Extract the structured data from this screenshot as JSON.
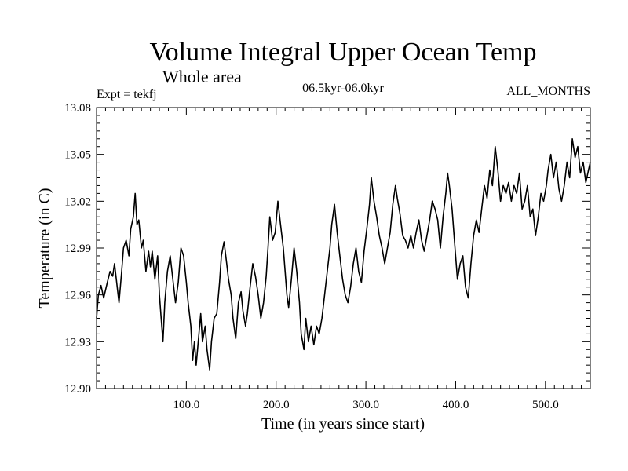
{
  "header": {
    "title": "Volume Integral Upper Ocean Temp",
    "subtitle": "Whole area",
    "expt": "Expt = tekfj",
    "period": "06.5kyr-06.0kyr",
    "months": "ALL_MONTHS"
  },
  "chart_data": {
    "type": "line",
    "title": "Volume Integral Upper Ocean Temp",
    "subtitle": "Whole area",
    "xlabel": "Time (in years since start)",
    "ylabel": "Temperature (in C)",
    "xlim": [
      0,
      550
    ],
    "ylim": [
      12.9,
      13.08
    ],
    "xticks": [
      100,
      200,
      300,
      400,
      500
    ],
    "xtick_labels": [
      "100.0",
      "200.0",
      "300.0",
      "400.0",
      "500.0"
    ],
    "yticks": [
      12.9,
      12.93,
      12.96,
      12.99,
      13.02,
      13.05,
      13.08
    ],
    "ytick_labels": [
      "12.90",
      "12.93",
      "12.96",
      "12.99",
      "13.02",
      "13.05",
      "13.08"
    ],
    "grid": false,
    "series": [
      {
        "name": "tekfj",
        "points": [
          [
            0,
            12.945
          ],
          [
            2,
            12.96
          ],
          [
            5,
            12.966
          ],
          [
            8,
            12.958
          ],
          [
            12,
            12.968
          ],
          [
            15,
            12.975
          ],
          [
            18,
            12.972
          ],
          [
            20,
            12.98
          ],
          [
            23,
            12.965
          ],
          [
            25,
            12.955
          ],
          [
            28,
            12.975
          ],
          [
            30,
            12.99
          ],
          [
            33,
            12.995
          ],
          [
            36,
            12.985
          ],
          [
            38,
            13.002
          ],
          [
            41,
            13.01
          ],
          [
            43,
            13.025
          ],
          [
            45,
            13.005
          ],
          [
            47,
            13.008
          ],
          [
            50,
            12.99
          ],
          [
            52,
            12.995
          ],
          [
            55,
            12.975
          ],
          [
            58,
            12.988
          ],
          [
            60,
            12.978
          ],
          [
            62,
            12.988
          ],
          [
            65,
            12.97
          ],
          [
            68,
            12.985
          ],
          [
            70,
            12.96
          ],
          [
            72,
            12.945
          ],
          [
            74,
            12.93
          ],
          [
            76,
            12.955
          ],
          [
            79,
            12.975
          ],
          [
            82,
            12.985
          ],
          [
            85,
            12.97
          ],
          [
            88,
            12.955
          ],
          [
            91,
            12.968
          ],
          [
            94,
            12.99
          ],
          [
            97,
            12.985
          ],
          [
            100,
            12.968
          ],
          [
            102,
            12.955
          ],
          [
            105,
            12.94
          ],
          [
            107,
            12.918
          ],
          [
            109,
            12.93
          ],
          [
            111,
            12.915
          ],
          [
            114,
            12.935
          ],
          [
            116,
            12.948
          ],
          [
            118,
            12.93
          ],
          [
            121,
            12.94
          ],
          [
            123,
            12.925
          ],
          [
            126,
            12.912
          ],
          [
            128,
            12.93
          ],
          [
            131,
            12.945
          ],
          [
            134,
            12.948
          ],
          [
            137,
            12.968
          ],
          [
            139,
            12.985
          ],
          [
            142,
            12.994
          ],
          [
            145,
            12.98
          ],
          [
            147,
            12.97
          ],
          [
            150,
            12.96
          ],
          [
            152,
            12.945
          ],
          [
            155,
            12.932
          ],
          [
            158,
            12.955
          ],
          [
            161,
            12.962
          ],
          [
            163,
            12.95
          ],
          [
            166,
            12.94
          ],
          [
            168,
            12.948
          ],
          [
            171,
            12.965
          ],
          [
            174,
            12.98
          ],
          [
            177,
            12.972
          ],
          [
            180,
            12.96
          ],
          [
            183,
            12.945
          ],
          [
            186,
            12.955
          ],
          [
            189,
            12.972
          ],
          [
            191,
            12.99
          ],
          [
            193,
            13.01
          ],
          [
            196,
            12.995
          ],
          [
            199,
            13.0
          ],
          [
            202,
            13.02
          ],
          [
            205,
            13.005
          ],
          [
            208,
            12.99
          ],
          [
            210,
            12.975
          ],
          [
            212,
            12.96
          ],
          [
            214,
            12.952
          ],
          [
            217,
            12.97
          ],
          [
            220,
            12.99
          ],
          [
            223,
            12.975
          ],
          [
            226,
            12.955
          ],
          [
            228,
            12.935
          ],
          [
            231,
            12.925
          ],
          [
            233,
            12.945
          ],
          [
            236,
            12.93
          ],
          [
            239,
            12.94
          ],
          [
            242,
            12.928
          ],
          [
            245,
            12.94
          ],
          [
            248,
            12.935
          ],
          [
            251,
            12.945
          ],
          [
            254,
            12.96
          ],
          [
            257,
            12.975
          ],
          [
            260,
            12.99
          ],
          [
            262,
            13.005
          ],
          [
            265,
            13.018
          ],
          [
            268,
            13.0
          ],
          [
            271,
            12.985
          ],
          [
            274,
            12.97
          ],
          [
            277,
            12.96
          ],
          [
            280,
            12.955
          ],
          [
            283,
            12.965
          ],
          [
            286,
            12.98
          ],
          [
            289,
            12.99
          ],
          [
            292,
            12.975
          ],
          [
            295,
            12.968
          ],
          [
            298,
            12.988
          ],
          [
            301,
            13.002
          ],
          [
            304,
            13.018
          ],
          [
            306,
            13.035
          ],
          [
            309,
            13.02
          ],
          [
            312,
            13.01
          ],
          [
            315,
            12.998
          ],
          [
            318,
            12.99
          ],
          [
            321,
            12.98
          ],
          [
            324,
            12.99
          ],
          [
            327,
            13.0
          ],
          [
            330,
            13.018
          ],
          [
            333,
            13.03
          ],
          [
            335,
            13.022
          ],
          [
            338,
            13.012
          ],
          [
            341,
            12.998
          ],
          [
            344,
            12.995
          ],
          [
            347,
            12.99
          ],
          [
            350,
            12.998
          ],
          [
            353,
            12.99
          ],
          [
            356,
            13.0
          ],
          [
            359,
            13.008
          ],
          [
            362,
            12.995
          ],
          [
            365,
            12.988
          ],
          [
            368,
            12.998
          ],
          [
            371,
            13.008
          ],
          [
            374,
            13.02
          ],
          [
            377,
            13.015
          ],
          [
            380,
            13.008
          ],
          [
            383,
            12.99
          ],
          [
            386,
            13.01
          ],
          [
            389,
            13.025
          ],
          [
            391,
            13.038
          ],
          [
            393,
            13.03
          ],
          [
            396,
            13.015
          ],
          [
            399,
            12.992
          ],
          [
            402,
            12.97
          ],
          [
            405,
            12.98
          ],
          [
            408,
            12.985
          ],
          [
            411,
            12.965
          ],
          [
            414,
            12.958
          ],
          [
            417,
            12.98
          ],
          [
            420,
            12.998
          ],
          [
            423,
            13.008
          ],
          [
            426,
            13.0
          ],
          [
            429,
            13.015
          ],
          [
            432,
            13.03
          ],
          [
            435,
            13.022
          ],
          [
            438,
            13.04
          ],
          [
            441,
            13.03
          ],
          [
            444,
            13.055
          ],
          [
            447,
            13.04
          ],
          [
            450,
            13.02
          ],
          [
            453,
            13.03
          ],
          [
            456,
            13.025
          ],
          [
            459,
            13.032
          ],
          [
            462,
            13.02
          ],
          [
            465,
            13.03
          ],
          [
            468,
            13.025
          ],
          [
            471,
            13.038
          ],
          [
            474,
            13.015
          ],
          [
            477,
            13.02
          ],
          [
            480,
            13.03
          ],
          [
            483,
            13.01
          ],
          [
            486,
            13.015
          ],
          [
            489,
            12.998
          ],
          [
            492,
            13.01
          ],
          [
            495,
            13.025
          ],
          [
            498,
            13.02
          ],
          [
            501,
            13.03
          ],
          [
            503,
            13.04
          ],
          [
            506,
            13.05
          ],
          [
            509,
            13.035
          ],
          [
            512,
            13.045
          ],
          [
            515,
            13.028
          ],
          [
            518,
            13.02
          ],
          [
            521,
            13.03
          ],
          [
            524,
            13.045
          ],
          [
            527,
            13.035
          ],
          [
            530,
            13.06
          ],
          [
            533,
            13.048
          ],
          [
            536,
            13.055
          ],
          [
            539,
            13.038
          ],
          [
            542,
            13.045
          ],
          [
            545,
            13.032
          ],
          [
            548,
            13.04
          ],
          [
            550,
            13.045
          ]
        ]
      }
    ]
  }
}
